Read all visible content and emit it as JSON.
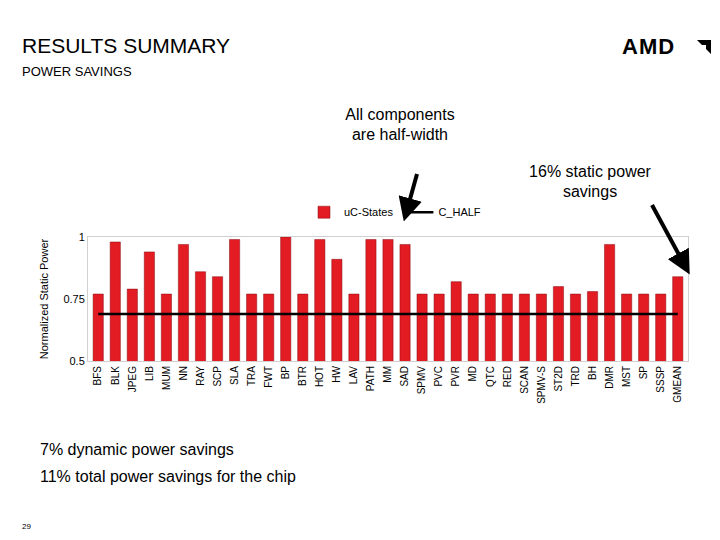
{
  "title": "RESULTS SUMMARY",
  "subtitle": "POWER SAVINGS",
  "logo": "AMD",
  "page_number": "29",
  "notes": {
    "components": "All components are half-width",
    "static": "16% static power savings",
    "dynamic": "7% dynamic power savings",
    "total": "11% total power savings for the chip"
  },
  "chart_data": {
    "type": "bar",
    "y_label": "Normalized Static Power",
    "categories": [
      "BFS",
      "BLK",
      "JPEG",
      "LIB",
      "MUM",
      "NN",
      "RAY",
      "SCP",
      "SLA",
      "TRA",
      "FWT",
      "BP",
      "BTR",
      "HOT",
      "HW",
      "LAV",
      "PATH",
      "MM",
      "SAD",
      "SPMV",
      "PVC",
      "PVR",
      "MD",
      "QTC",
      "RED",
      "SCAN",
      "SPMV-S",
      "ST2D",
      "TRD",
      "BH",
      "DMR",
      "MST",
      "SP",
      "SSSP",
      "GMEAN"
    ],
    "series": [
      {
        "name": "uC-States",
        "type": "bar",
        "color": "#e31b23",
        "values": [
          0.77,
          0.98,
          0.79,
          0.94,
          0.77,
          0.97,
          0.86,
          0.84,
          0.99,
          0.77,
          0.77,
          1.0,
          0.77,
          0.99,
          0.91,
          0.77,
          0.99,
          0.99,
          0.97,
          0.77,
          0.77,
          0.82,
          0.77,
          0.77,
          0.77,
          0.77,
          0.77,
          0.8,
          0.77,
          0.78,
          0.97,
          0.77,
          0.77,
          0.77,
          0.84
        ]
      },
      {
        "name": "C_HALF",
        "type": "line",
        "color": "#000000",
        "values": [
          0.69,
          0.69,
          0.69,
          0.69,
          0.69,
          0.69,
          0.69,
          0.69,
          0.69,
          0.69,
          0.69,
          0.69,
          0.69,
          0.69,
          0.69,
          0.69,
          0.69,
          0.69,
          0.69,
          0.69,
          0.69,
          0.69,
          0.69,
          0.69,
          0.69,
          0.69,
          0.69,
          0.69,
          0.69,
          0.69,
          0.69,
          0.69,
          0.69,
          0.69,
          0.69
        ]
      }
    ],
    "ylim": [
      0.5,
      1
    ],
    "yticks": [
      0.5,
      0.75,
      1
    ],
    "grid": false,
    "legend": "top"
  }
}
